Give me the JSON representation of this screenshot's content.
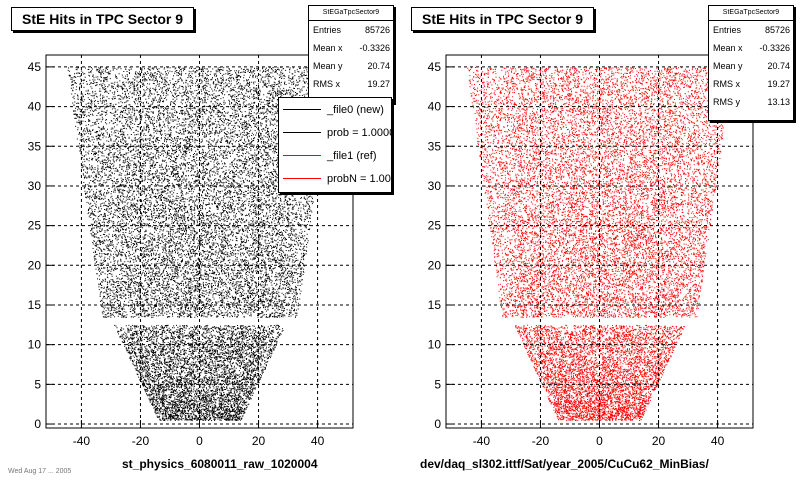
{
  "panels": [
    {
      "title": "StE Hits in TPC Sector 9",
      "xlabel": "st_physics_6080011_raw_1020004",
      "stats": {
        "header": "StEGaTpcSector9",
        "rows": [
          {
            "label": "Entries",
            "value": "85726"
          },
          {
            "label": "Mean x",
            "value": "-0.3326"
          },
          {
            "label": "Mean y",
            "value": "20.74"
          },
          {
            "label": "RMS x",
            "value": "19.27"
          }
        ]
      },
      "legend": [
        {
          "label": "_file0 (new)",
          "color": "#000000"
        },
        {
          "label": "prob = 1.000000",
          "color": "#000000"
        },
        {
          "label": "_file1 (ref)",
          "color": "#ff0000"
        },
        {
          "label": "probN = 1.000000",
          "color": "#ff0000"
        }
      ]
    },
    {
      "title": "StE Hits in TPC Sector 9",
      "xlabel": "dev/daq_sl302.ittf/Sat/year_2005/CuCu62_MinBias/",
      "stats": {
        "header": "StEGaTpcSector9",
        "rows": [
          {
            "label": "Entries",
            "value": "85726"
          },
          {
            "label": "Mean x",
            "value": "-0.3326"
          },
          {
            "label": "Mean y",
            "value": "20.74"
          },
          {
            "label": "RMS x",
            "value": "19.27"
          },
          {
            "label": "RMS y",
            "value": "13.13"
          }
        ]
      }
    }
  ],
  "footnote": "Wed Aug 17 ... 2005",
  "chart_data": [
    {
      "type": "scatter",
      "title": "StE Hits in TPC Sector 9",
      "xlabel": "st_physics_6080011_raw_1020004",
      "ylabel": "",
      "xlim": [
        -52,
        52
      ],
      "ylim": [
        -0.5,
        46.5
      ],
      "xticks": [
        -40,
        -20,
        0,
        20,
        40
      ],
      "yticks": [
        0,
        5,
        10,
        15,
        20,
        25,
        30,
        35,
        40,
        45
      ],
      "grid": true,
      "series": [
        {
          "name": "_file0 (new)",
          "color": "#000000",
          "entries": 85726,
          "mean_x": -0.3326,
          "mean_y": 20.74,
          "rms_x": 19.27,
          "rms_y": 13.13,
          "region_rows": [
            {
              "y": [
                13.5,
                45
              ],
              "x": [
                -45,
                45
              ]
            },
            {
              "y": [
                0.5,
                12.5
              ],
              "x": [
                -29,
                29
              ]
            }
          ]
        }
      ]
    },
    {
      "type": "scatter",
      "title": "StE Hits in TPC Sector 9",
      "xlabel": "dev/daq_sl302.ittf/Sat/year_2005/CuCu62_MinBias/",
      "ylabel": "",
      "xlim": [
        -52,
        52
      ],
      "ylim": [
        -0.5,
        46.5
      ],
      "xticks": [
        -40,
        -20,
        0,
        20,
        40
      ],
      "yticks": [
        0,
        5,
        10,
        15,
        20,
        25,
        30,
        35,
        40,
        45
      ],
      "grid": true,
      "series": [
        {
          "name": "_file1 (ref)",
          "color": "#ff0000",
          "entries": 85726,
          "mean_x": -0.3326,
          "mean_y": 20.74,
          "rms_x": 19.27,
          "rms_y": 13.13,
          "region_rows": [
            {
              "y": [
                13.5,
                45
              ],
              "x": [
                -45,
                45
              ]
            },
            {
              "y": [
                0.5,
                12.5
              ],
              "x": [
                -29,
                29
              ]
            }
          ]
        }
      ]
    }
  ]
}
